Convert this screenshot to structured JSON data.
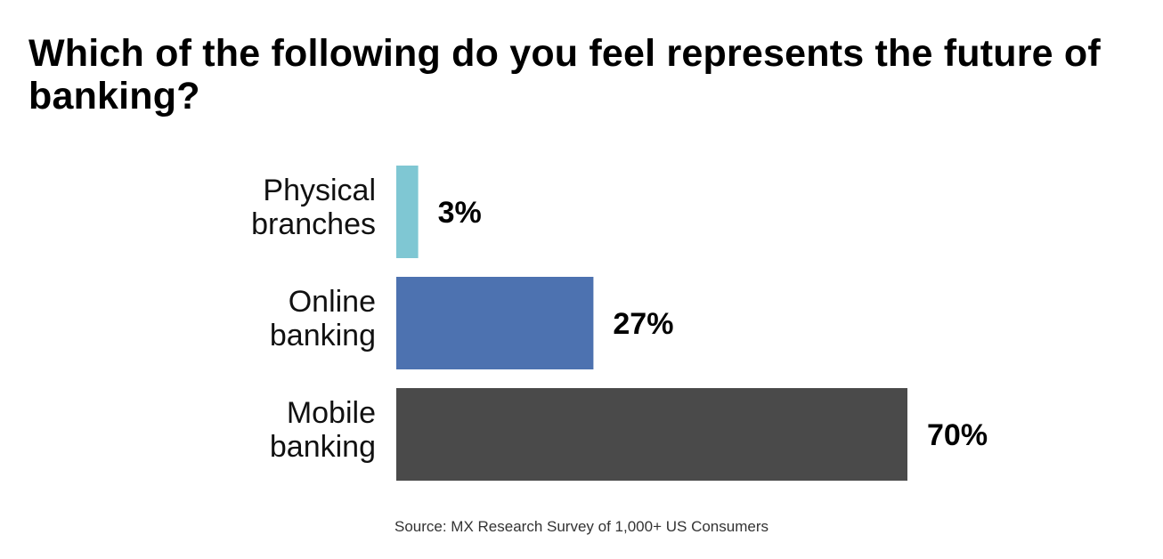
{
  "chart_data": {
    "type": "bar",
    "orientation": "horizontal",
    "title": "Which of the following do you feel represents the future of banking?",
    "categories": [
      [
        "Physical",
        "branches"
      ],
      [
        "Online",
        "banking"
      ],
      [
        "Mobile",
        "banking"
      ]
    ],
    "values": [
      3,
      27,
      70
    ],
    "value_labels": [
      "3%",
      "27%",
      "70%"
    ],
    "colors": [
      "#7fc7d3",
      "#4d72b0",
      "#4a4a4a"
    ],
    "xlim": [
      0,
      70
    ],
    "grid": false,
    "legend": "none",
    "source": "Source: MX Research Survey of 1,000+ US Consumers"
  }
}
